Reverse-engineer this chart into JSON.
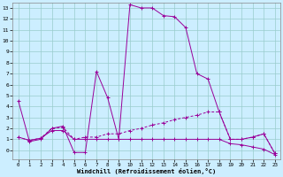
{
  "xlabel": "Windchill (Refroidissement éolien,°C)",
  "bg_color": "#cceeff",
  "grid_color": "#99cccc",
  "line_color": "#990099",
  "xlim": [
    -0.5,
    23.5
  ],
  "ylim": [
    -0.8,
    13.5
  ],
  "x_ticks": [
    0,
    1,
    2,
    3,
    4,
    5,
    6,
    7,
    8,
    9,
    10,
    11,
    12,
    13,
    14,
    15,
    16,
    17,
    18,
    19,
    20,
    21,
    22,
    23
  ],
  "y_ticks": [
    0,
    1,
    2,
    3,
    4,
    5,
    6,
    7,
    8,
    9,
    10,
    11,
    12,
    13
  ],
  "line1_x": [
    0,
    1,
    2,
    3,
    4,
    5,
    6,
    7,
    8,
    9,
    10,
    11,
    12,
    13,
    14,
    15,
    16,
    17,
    18,
    19,
    20,
    21,
    22,
    23
  ],
  "line1_y": [
    4.5,
    0.8,
    1.0,
    2.0,
    2.2,
    -0.2,
    -0.2,
    7.2,
    4.8,
    1.0,
    13.3,
    13.0,
    13.0,
    12.3,
    12.2,
    11.2,
    7.0,
    6.5,
    3.5,
    1.0,
    1.0,
    1.2,
    1.5,
    -0.3
  ],
  "line2_x": [
    0,
    1,
    2,
    3,
    4,
    5,
    6,
    7,
    8,
    9,
    10,
    11,
    12,
    13,
    14,
    15,
    16,
    17,
    18,
    19,
    20,
    21,
    22,
    23
  ],
  "line2_y": [
    1.2,
    0.9,
    1.1,
    2.0,
    2.1,
    1.0,
    1.2,
    1.2,
    1.5,
    1.5,
    1.8,
    2.0,
    2.3,
    2.5,
    2.8,
    3.0,
    3.2,
    3.5,
    3.5,
    1.0,
    1.0,
    1.2,
    1.5,
    -0.3
  ],
  "line3_x": [
    0,
    1,
    2,
    3,
    4,
    5,
    6,
    7,
    8,
    9,
    10,
    11,
    12,
    13,
    14,
    15,
    16,
    17,
    18,
    19,
    20,
    21,
    22,
    23
  ],
  "line3_y": [
    1.2,
    0.9,
    1.1,
    1.8,
    1.8,
    1.0,
    1.0,
    1.0,
    1.0,
    1.0,
    1.0,
    1.0,
    1.0,
    1.0,
    1.0,
    1.0,
    1.0,
    1.0,
    1.0,
    0.6,
    0.5,
    0.3,
    0.1,
    -0.4
  ]
}
